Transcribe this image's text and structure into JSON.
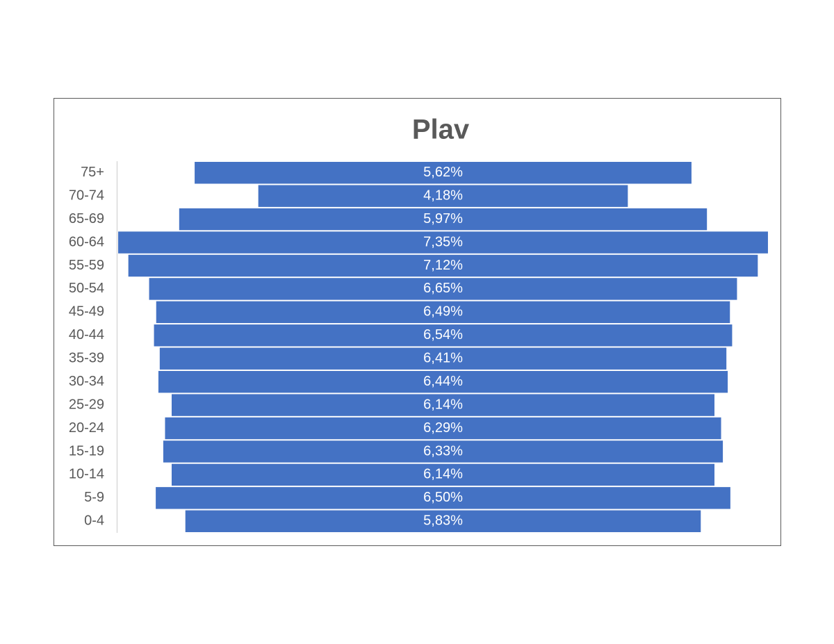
{
  "chart_data": {
    "type": "bar",
    "title": "Plav",
    "categories": [
      "75+",
      "70-74",
      "65-69",
      "60-64",
      "55-59",
      "50-54",
      "45-49",
      "40-44",
      "35-39",
      "30-34",
      "25-29",
      "20-24",
      "15-19",
      "10-14",
      "5-9",
      "0-4"
    ],
    "values": [
      5.62,
      4.18,
      5.97,
      7.35,
      7.12,
      6.65,
      6.49,
      6.54,
      6.41,
      6.44,
      6.14,
      6.29,
      6.33,
      6.14,
      6.5,
      5.83
    ],
    "value_labels": [
      "5,62%",
      "4,18%",
      "5,97%",
      "7,35%",
      "7,12%",
      "6,65%",
      "6,49%",
      "6,54%",
      "6,41%",
      "6,44%",
      "6,14%",
      "6,29%",
      "6,33%",
      "6,14%",
      "6,50%",
      "5,83%"
    ],
    "color": "#4472c4"
  }
}
